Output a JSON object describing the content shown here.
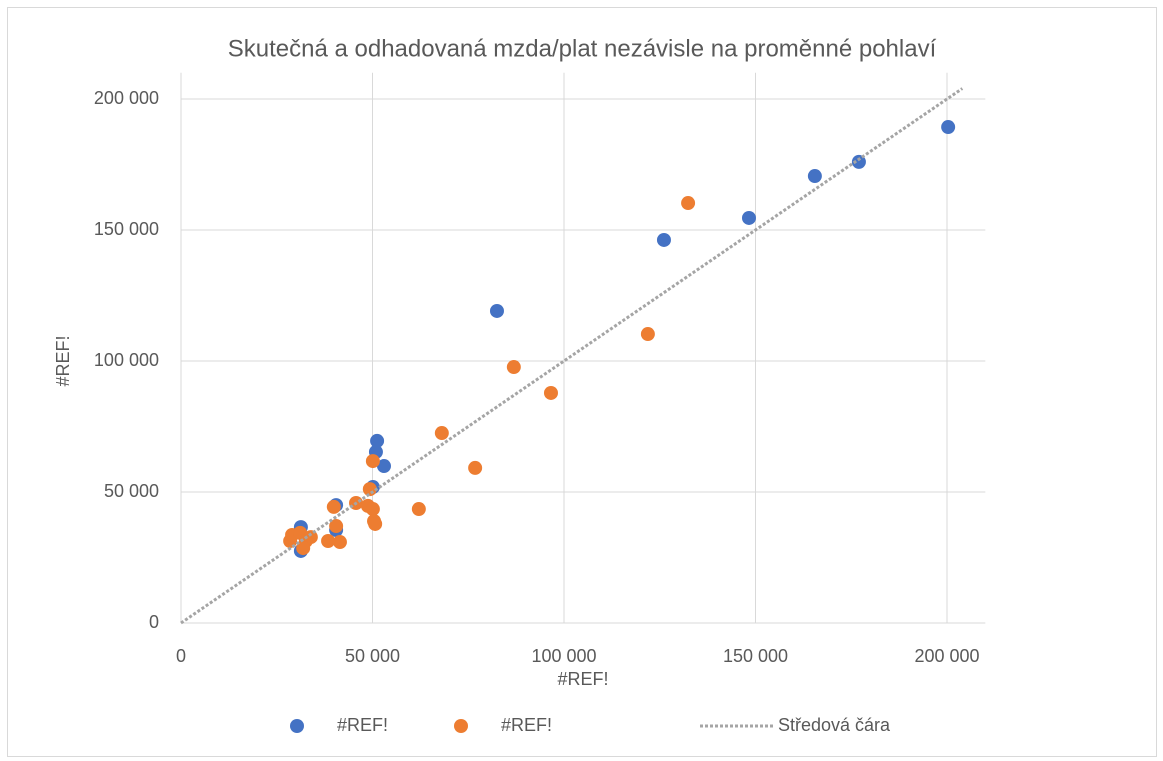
{
  "chart_data": {
    "type": "scatter",
    "title": "Skutečná a odhadovaná mzda/plat nezávisle na proměnné pohlaví",
    "x_label": "#REF!",
    "y_label": "#REF!",
    "xlim": [
      0,
      210000
    ],
    "ylim": [
      0,
      210000
    ],
    "xticks": [
      0,
      {
        "value": 50000,
        "label": "50 000"
      },
      {
        "value": 100000,
        "label": "100 000"
      },
      {
        "value": 150000,
        "label": "150 000"
      },
      {
        "value": 200000,
        "label": "200 000"
      }
    ],
    "yticks": [
      0,
      {
        "value": 50000,
        "label": "50 000"
      },
      {
        "value": 100000,
        "label": "100 000"
      },
      {
        "value": 150000,
        "label": "150 000"
      },
      {
        "value": 200000,
        "label": "200 000"
      }
    ],
    "grid": true,
    "legend": "bottom",
    "series": [
      {
        "name": "#REF!",
        "color": "#4472c4",
        "x": [
          200300,
          177000,
          165500,
          148300,
          126100,
          82500,
          51200,
          50900,
          53000,
          50100,
          40500,
          40500,
          31300,
          31300
        ],
        "values": [
          189300,
          176000,
          170600,
          154600,
          146200,
          119100,
          69500,
          65300,
          59900,
          51900,
          45000,
          35500,
          36600,
          27500
        ]
      },
      {
        "name": "#REF!",
        "color": "#ed7d31",
        "x": [
          132400,
          121900,
          86900,
          96600,
          68100,
          76800,
          50100,
          49300,
          62100,
          45700,
          48800,
          50100,
          50400,
          50700,
          39900,
          40500,
          41500,
          38400,
          28500,
          29000,
          31100,
          33900,
          32600,
          31900
        ],
        "values": [
          160300,
          110300,
          97700,
          87800,
          72500,
          59200,
          61800,
          51100,
          43500,
          45800,
          44700,
          43500,
          38900,
          37800,
          44300,
          37000,
          30900,
          31300,
          31300,
          33600,
          34400,
          32800,
          31300,
          28600
        ]
      },
      {
        "name": "Středová čára",
        "color": "#a5a5a5",
        "line": "dotted",
        "x": [
          0,
          204000
        ],
        "values": [
          0,
          204000
        ]
      }
    ]
  }
}
